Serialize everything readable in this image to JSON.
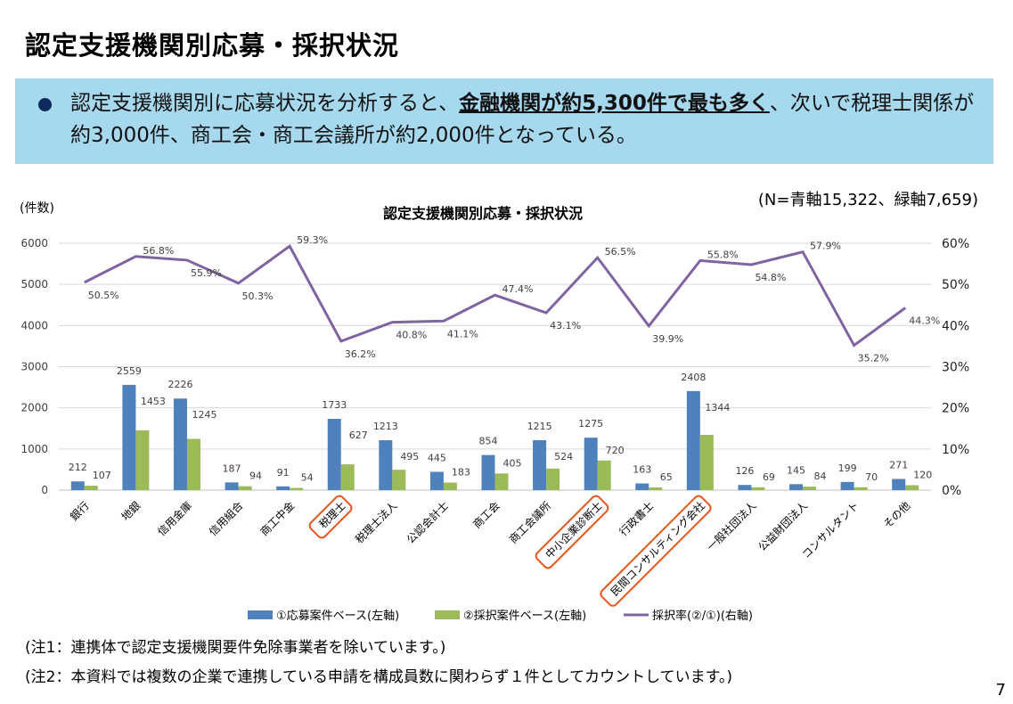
{
  "title": "認定支援機関別応募・採択状況",
  "summary": {
    "pre": "認定支援機関別に応募状況を分析すると、",
    "emph": "金融機関が約5,300件で最も多く",
    "post": "、次いで税理士関係が約3,000件、商工会・商工会議所が約2,000件となっている。"
  },
  "notes": [
    "(注1：連携体で認定支援機関要件免除事業者を除いています。)",
    "(注2：本資料では複数の企業で連携している申請を構成員数に関わらず１件としてカウントしています。)"
  ],
  "page_number": "7",
  "colors": {
    "applied": "#4f81bd",
    "adopted": "#9bbb59",
    "rate": "#8064a2",
    "highlight": "#e8541e",
    "banner": "#a6d8ee"
  },
  "chart_data": {
    "type": "bar+line",
    "title": "認定支援機関別応募・採択状況",
    "ylabel_left": "(件数)",
    "annotation": "(N=青軸15,322、緑軸7,659)",
    "ylim_left": [
      0,
      6000
    ],
    "yticks_left": [
      "0",
      "1000",
      "2000",
      "3000",
      "4000",
      "5000",
      "6000"
    ],
    "ylim_right": [
      0,
      60
    ],
    "yticks_right": [
      "0%",
      "10%",
      "20%",
      "30%",
      "40%",
      "50%",
      "60%"
    ],
    "grid": true,
    "legend_position": "bottom",
    "categories": [
      "銀行",
      "地銀",
      "信用金庫",
      "信用組合",
      "商工中金",
      "税理士",
      "税理士法人",
      "公認会計士",
      "商工会",
      "商工会議所",
      "中小企業診断士",
      "行政書士",
      "民間コンサルティング会社",
      "一般社団法人",
      "公益財団法人",
      "コンサルタント",
      "その他"
    ],
    "highlighted_categories": [
      "税理士",
      "中小企業診断士",
      "民間コンサルティング会社"
    ],
    "series": [
      {
        "name": "①応募案件ベース(左軸)",
        "type": "bar",
        "axis": "left",
        "values": [
          212,
          2559,
          2226,
          187,
          91,
          1733,
          1213,
          445,
          854,
          1215,
          1275,
          163,
          2408,
          126,
          145,
          199,
          271
        ]
      },
      {
        "name": "②採択案件ベース(左軸)",
        "type": "bar",
        "axis": "left",
        "values": [
          107,
          1453,
          1245,
          94,
          54,
          627,
          495,
          183,
          405,
          524,
          720,
          65,
          1344,
          69,
          84,
          70,
          120
        ]
      },
      {
        "name": "採択率(②/①)(右軸)",
        "type": "line",
        "axis": "right",
        "values": [
          50.5,
          56.8,
          55.9,
          50.3,
          59.3,
          36.2,
          40.8,
          41.1,
          47.4,
          43.1,
          56.5,
          39.9,
          55.8,
          54.8,
          57.9,
          35.2,
          44.3
        ]
      }
    ]
  }
}
